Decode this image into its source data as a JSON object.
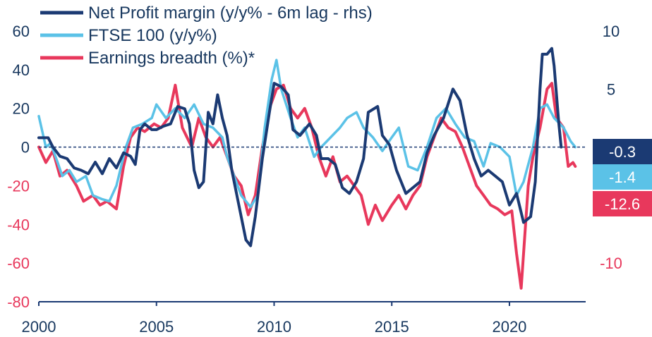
{
  "chart_data": {
    "type": "line",
    "title": "",
    "xlabel": "",
    "ylabel_left": "",
    "ylabel_right": "",
    "x_range": [
      2000,
      2023.3
    ],
    "x_ticks": [
      "2000",
      "2005",
      "2010",
      "2015",
      "2020"
    ],
    "left_axis": {
      "range": [
        -80,
        60
      ],
      "ticks": [
        "60",
        "40",
        "20",
        "0",
        "-20",
        "-40",
        "-60",
        "-80"
      ],
      "tick_values": [
        60,
        40,
        20,
        0,
        -20,
        -40,
        -60,
        -80
      ]
    },
    "right_axis": {
      "range": [
        -13.333,
        10
      ],
      "ticks": [
        "10",
        "5",
        "-10"
      ],
      "tick_values": [
        10,
        5,
        -10
      ]
    },
    "zero_line": "dashed",
    "colors": {
      "profit": "#1b3a73",
      "ftse": "#5bc2e7",
      "breadth": "#e8385c",
      "text_dark": "#17375e"
    },
    "series": [
      {
        "key": "profit",
        "name": "Net Profit margin (y/y% - 6m lag - rhs)",
        "axis": "right",
        "points": [
          [
            2000.0,
            0.8
          ],
          [
            2000.4,
            0.8
          ],
          [
            2000.6,
            0.0
          ],
          [
            2000.9,
            -0.8
          ],
          [
            2001.2,
            -1.0
          ],
          [
            2001.5,
            -1.8
          ],
          [
            2001.8,
            -2.0
          ],
          [
            2002.1,
            -2.3
          ],
          [
            2002.4,
            -1.3
          ],
          [
            2002.7,
            -2.3
          ],
          [
            2003.0,
            -1.0
          ],
          [
            2003.3,
            -1.8
          ],
          [
            2003.6,
            -0.5
          ],
          [
            2003.9,
            -0.8
          ],
          [
            2004.1,
            -1.5
          ],
          [
            2004.3,
            1.5
          ],
          [
            2004.5,
            2.0
          ],
          [
            2004.8,
            1.5
          ],
          [
            2005.0,
            1.5
          ],
          [
            2005.3,
            1.8
          ],
          [
            2005.6,
            2.0
          ],
          [
            2005.9,
            3.5
          ],
          [
            2006.2,
            3.3
          ],
          [
            2006.4,
            2.0
          ],
          [
            2006.6,
            -2.0
          ],
          [
            2006.8,
            -3.5
          ],
          [
            2007.0,
            -3.0
          ],
          [
            2007.2,
            3.0
          ],
          [
            2007.4,
            2.0
          ],
          [
            2007.6,
            4.5
          ],
          [
            2007.8,
            2.5
          ],
          [
            2008.0,
            1.0
          ],
          [
            2008.2,
            -2.0
          ],
          [
            2008.5,
            -5.0
          ],
          [
            2008.8,
            -8.0
          ],
          [
            2009.0,
            -8.5
          ],
          [
            2009.2,
            -6.0
          ],
          [
            2009.5,
            -1.0
          ],
          [
            2009.8,
            3.0
          ],
          [
            2010.0,
            5.5
          ],
          [
            2010.3,
            5.2
          ],
          [
            2010.6,
            4.5
          ],
          [
            2010.8,
            1.5
          ],
          [
            2011.1,
            1.0
          ],
          [
            2011.5,
            2.0
          ],
          [
            2011.8,
            1.0
          ],
          [
            2012.0,
            -1.0
          ],
          [
            2012.3,
            -1.0
          ],
          [
            2012.6,
            -1.5
          ],
          [
            2012.9,
            -3.5
          ],
          [
            2013.2,
            -4.0
          ],
          [
            2013.5,
            -3.0
          ],
          [
            2013.8,
            -1.0
          ],
          [
            2014.0,
            3.0
          ],
          [
            2014.4,
            3.5
          ],
          [
            2014.6,
            1.0
          ],
          [
            2014.9,
            0.2
          ],
          [
            2015.2,
            -2.0
          ],
          [
            2015.6,
            -4.0
          ],
          [
            2015.9,
            -3.5
          ],
          [
            2016.2,
            -3.0
          ],
          [
            2016.5,
            -0.5
          ],
          [
            2016.8,
            1.0
          ],
          [
            2017.2,
            2.5
          ],
          [
            2017.6,
            5.0
          ],
          [
            2017.9,
            4.0
          ],
          [
            2018.2,
            1.0
          ],
          [
            2018.5,
            -1.0
          ],
          [
            2018.8,
            -2.5
          ],
          [
            2019.1,
            -2.0
          ],
          [
            2019.4,
            -2.5
          ],
          [
            2019.7,
            -3.0
          ],
          [
            2020.0,
            -5.0
          ],
          [
            2020.3,
            -4.0
          ],
          [
            2020.6,
            -6.5
          ],
          [
            2020.9,
            -6.0
          ],
          [
            2021.1,
            -3.0
          ],
          [
            2021.3,
            5.0
          ],
          [
            2021.4,
            8.0
          ],
          [
            2021.6,
            8.0
          ],
          [
            2021.8,
            8.5
          ],
          [
            2021.9,
            7.0
          ],
          [
            2022.1,
            2.0
          ],
          [
            2022.2,
            0.0
          ]
        ],
        "last_value_label": "-0.3"
      },
      {
        "key": "ftse",
        "name": "FTSE 100 (y/y%)",
        "axis": "left",
        "points": [
          [
            2000.0,
            16
          ],
          [
            2000.3,
            0
          ],
          [
            2000.5,
            2
          ],
          [
            2000.8,
            -8
          ],
          [
            2001.0,
            -15
          ],
          [
            2001.3,
            -12
          ],
          [
            2001.6,
            -18
          ],
          [
            2002.0,
            -15
          ],
          [
            2002.3,
            -25
          ],
          [
            2002.7,
            -27
          ],
          [
            2003.0,
            -28
          ],
          [
            2003.3,
            -20
          ],
          [
            2003.7,
            0
          ],
          [
            2004.0,
            10
          ],
          [
            2004.4,
            12
          ],
          [
            2004.8,
            15
          ],
          [
            2005.0,
            22
          ],
          [
            2005.4,
            15
          ],
          [
            2005.8,
            20
          ],
          [
            2006.2,
            15
          ],
          [
            2006.6,
            22
          ],
          [
            2007.0,
            12
          ],
          [
            2007.4,
            10
          ],
          [
            2007.8,
            5
          ],
          [
            2008.0,
            -5
          ],
          [
            2008.3,
            -15
          ],
          [
            2008.6,
            -25
          ],
          [
            2009.0,
            -31
          ],
          [
            2009.3,
            -25
          ],
          [
            2009.6,
            10
          ],
          [
            2009.9,
            35
          ],
          [
            2010.1,
            45
          ],
          [
            2010.3,
            30
          ],
          [
            2010.7,
            15
          ],
          [
            2011.0,
            5
          ],
          [
            2011.3,
            10
          ],
          [
            2011.7,
            -5
          ],
          [
            2012.0,
            0
          ],
          [
            2012.4,
            5
          ],
          [
            2012.8,
            10
          ],
          [
            2013.1,
            15
          ],
          [
            2013.5,
            18
          ],
          [
            2013.8,
            10
          ],
          [
            2014.2,
            5
          ],
          [
            2014.6,
            -2
          ],
          [
            2015.0,
            5
          ],
          [
            2015.3,
            10
          ],
          [
            2015.7,
            -10
          ],
          [
            2016.1,
            -12
          ],
          [
            2016.5,
            0
          ],
          [
            2016.9,
            15
          ],
          [
            2017.3,
            20
          ],
          [
            2017.7,
            12
          ],
          [
            2018.1,
            5
          ],
          [
            2018.5,
            3
          ],
          [
            2018.9,
            -10
          ],
          [
            2019.2,
            2
          ],
          [
            2019.6,
            0
          ],
          [
            2020.0,
            -5
          ],
          [
            2020.3,
            -25
          ],
          [
            2020.6,
            -18
          ],
          [
            2021.0,
            0
          ],
          [
            2021.3,
            20
          ],
          [
            2021.6,
            22
          ],
          [
            2021.9,
            15
          ],
          [
            2022.3,
            10
          ],
          [
            2022.6,
            3
          ],
          [
            2022.8,
            0
          ]
        ],
        "last_value_label": "-1.4"
      },
      {
        "key": "breadth",
        "name": "Earnings breadth (%)*",
        "axis": "left",
        "points": [
          [
            2000.0,
            0
          ],
          [
            2000.3,
            -8
          ],
          [
            2000.6,
            -2
          ],
          [
            2000.9,
            -15
          ],
          [
            2001.2,
            -12
          ],
          [
            2001.6,
            -20
          ],
          [
            2001.9,
            -28
          ],
          [
            2002.3,
            -25
          ],
          [
            2002.6,
            -30
          ],
          [
            2002.9,
            -28
          ],
          [
            2003.3,
            -32
          ],
          [
            2003.6,
            -10
          ],
          [
            2003.9,
            5
          ],
          [
            2004.2,
            10
          ],
          [
            2004.5,
            8
          ],
          [
            2004.9,
            12
          ],
          [
            2005.2,
            10
          ],
          [
            2005.5,
            15
          ],
          [
            2005.8,
            32
          ],
          [
            2006.1,
            10
          ],
          [
            2006.5,
            0
          ],
          [
            2006.8,
            15
          ],
          [
            2007.1,
            5
          ],
          [
            2007.4,
            0
          ],
          [
            2007.7,
            5
          ],
          [
            2008.0,
            -5
          ],
          [
            2008.3,
            -15
          ],
          [
            2008.6,
            -20
          ],
          [
            2008.9,
            -35
          ],
          [
            2009.2,
            -25
          ],
          [
            2009.5,
            0
          ],
          [
            2009.8,
            20
          ],
          [
            2010.1,
            30
          ],
          [
            2010.4,
            32
          ],
          [
            2010.7,
            20
          ],
          [
            2011.0,
            15
          ],
          [
            2011.3,
            20
          ],
          [
            2011.6,
            10
          ],
          [
            2011.9,
            -5
          ],
          [
            2012.2,
            -15
          ],
          [
            2012.5,
            -5
          ],
          [
            2012.8,
            -18
          ],
          [
            2013.1,
            -15
          ],
          [
            2013.4,
            -20
          ],
          [
            2013.7,
            -25
          ],
          [
            2014.0,
            -40
          ],
          [
            2014.3,
            -30
          ],
          [
            2014.6,
            -38
          ],
          [
            2015.0,
            -30
          ],
          [
            2015.3,
            -25
          ],
          [
            2015.6,
            -32
          ],
          [
            2015.9,
            -25
          ],
          [
            2016.2,
            -20
          ],
          [
            2016.5,
            -5
          ],
          [
            2016.8,
            5
          ],
          [
            2017.1,
            15
          ],
          [
            2017.4,
            10
          ],
          [
            2017.7,
            8
          ],
          [
            2018.0,
            0
          ],
          [
            2018.3,
            -10
          ],
          [
            2018.6,
            -20
          ],
          [
            2018.9,
            -25
          ],
          [
            2019.2,
            -30
          ],
          [
            2019.5,
            -32
          ],
          [
            2019.8,
            -35
          ],
          [
            2020.1,
            -33
          ],
          [
            2020.3,
            -55
          ],
          [
            2020.5,
            -73
          ],
          [
            2020.8,
            -20
          ],
          [
            2021.0,
            -5
          ],
          [
            2021.3,
            10
          ],
          [
            2021.6,
            30
          ],
          [
            2021.8,
            33
          ],
          [
            2022.0,
            15
          ],
          [
            2022.3,
            10
          ],
          [
            2022.5,
            -10
          ],
          [
            2022.7,
            -8
          ],
          [
            2022.8,
            -10
          ]
        ],
        "last_value_label": "-12.6"
      }
    ]
  }
}
